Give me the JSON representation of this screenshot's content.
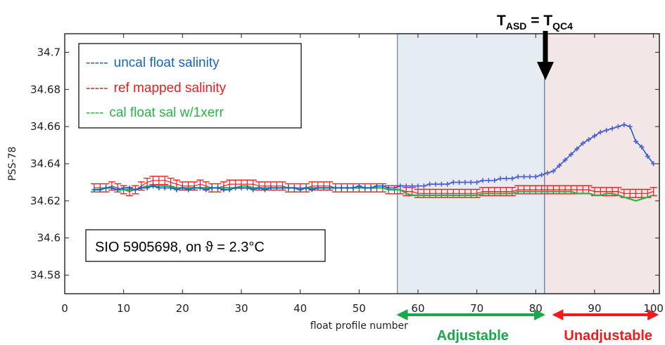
{
  "chart_data": {
    "type": "line",
    "xlabel": "float profile number",
    "ylabel": "PSS-78",
    "xlim": [
      0,
      101
    ],
    "ylim": [
      34.57,
      34.71
    ],
    "xticks": [
      0,
      10,
      20,
      30,
      40,
      50,
      60,
      70,
      80,
      90,
      100
    ],
    "yticks": [
      34.58,
      34.6,
      34.62,
      34.64,
      34.66,
      34.68,
      34.7
    ],
    "ytick_labels": [
      "34.58",
      "34.6",
      "34.62",
      "34.64",
      "34.66",
      "34.68",
      "34.7"
    ],
    "grid": false,
    "legend": {
      "position": "top-left"
    },
    "annotation_box": "SIO 5905698, on ϑ = 2.3°C",
    "regions": [
      {
        "name": "Adjustable",
        "x_start": 56.5,
        "x_end": 81.5,
        "color": "#e6edf2",
        "label_color": "#17a84a"
      },
      {
        "name": "Unadjustable",
        "x_start": 81.5,
        "x_end": 101,
        "color": "#f2e6e6",
        "label_color": "#ee1c1c"
      }
    ],
    "vline": {
      "x": 81.5,
      "label_main": "T",
      "label_sub1": "ASD",
      "label_eq": " = T",
      "label_sub2": "QC4",
      "arrow_color": "#000000"
    },
    "series": [
      {
        "name": "uncal float salinity",
        "line_label": "-----",
        "color": "#1565c0",
        "marker": "plus",
        "x": [
          5,
          6,
          7,
          8,
          9,
          10,
          11,
          12,
          13,
          14,
          15,
          16,
          17,
          18,
          19,
          20,
          21,
          22,
          23,
          24,
          25,
          26,
          27,
          28,
          29,
          30,
          31,
          32,
          33,
          34,
          35,
          36,
          37,
          38,
          39,
          40,
          41,
          42,
          43,
          44,
          45,
          46,
          47,
          48,
          49,
          50,
          51,
          52,
          53,
          54,
          55,
          56,
          57,
          58,
          59,
          60,
          61,
          62,
          63,
          64,
          65,
          66,
          67,
          68,
          69,
          70,
          71,
          72,
          73,
          74,
          75,
          76,
          77,
          78,
          79,
          80,
          81,
          82,
          83,
          84,
          85,
          86,
          87,
          88,
          89,
          90,
          91,
          92,
          93,
          94,
          95,
          96,
          97,
          98,
          99,
          100
        ],
        "y": [
          34.626,
          34.626,
          34.627,
          34.627,
          34.626,
          34.627,
          34.627,
          34.626,
          34.627,
          34.627,
          34.628,
          34.627,
          34.627,
          34.627,
          34.626,
          34.627,
          34.626,
          34.627,
          34.627,
          34.626,
          34.627,
          34.627,
          34.626,
          34.626,
          34.627,
          34.627,
          34.627,
          34.626,
          34.627,
          34.626,
          34.627,
          34.627,
          34.627,
          34.627,
          34.627,
          34.626,
          34.627,
          34.626,
          34.627,
          34.627,
          34.627,
          34.627,
          34.627,
          34.627,
          34.627,
          34.628,
          34.627,
          34.627,
          34.628,
          34.628,
          34.627,
          34.627,
          34.628,
          34.628,
          34.628,
          34.628,
          34.628,
          34.629,
          34.629,
          34.629,
          34.629,
          34.63,
          34.63,
          34.63,
          34.63,
          34.63,
          34.631,
          34.631,
          34.631,
          34.632,
          34.632,
          34.632,
          34.633,
          34.633,
          34.633,
          34.633,
          34.634,
          34.635,
          34.636,
          34.639,
          34.642,
          34.645,
          34.648,
          34.651,
          34.653,
          34.655,
          34.657,
          34.658,
          34.659,
          34.66,
          34.661,
          34.66,
          34.652,
          34.649,
          34.644,
          34.64
        ]
      },
      {
        "name": "ref mapped salinity",
        "line_label": "-----",
        "color": "#ee1c1c",
        "marker": "errorbar",
        "x": [
          5,
          6,
          7,
          8,
          9,
          10,
          11,
          12,
          13,
          14,
          15,
          16,
          17,
          18,
          19,
          20,
          21,
          22,
          23,
          24,
          25,
          26,
          27,
          28,
          29,
          30,
          31,
          32,
          33,
          34,
          35,
          36,
          37,
          38,
          39,
          40,
          41,
          42,
          43,
          44,
          45,
          46,
          47,
          48,
          49,
          50,
          51,
          52,
          53,
          54,
          55,
          56,
          57,
          58,
          59,
          60,
          61,
          62,
          63,
          64,
          65,
          66,
          67,
          68,
          69,
          70,
          71,
          72,
          73,
          74,
          75,
          76,
          77,
          78,
          79,
          80,
          81,
          82,
          83,
          84,
          85,
          86,
          87,
          88,
          89,
          90,
          91,
          92,
          93,
          94,
          95,
          96,
          97,
          98,
          99,
          100
        ],
        "y": [
          34.627,
          34.627,
          34.627,
          34.628,
          34.627,
          34.626,
          34.625,
          34.626,
          34.628,
          34.63,
          34.631,
          34.631,
          34.631,
          34.63,
          34.629,
          34.628,
          34.628,
          34.628,
          34.629,
          34.628,
          34.627,
          34.627,
          34.628,
          34.629,
          34.629,
          34.629,
          34.629,
          34.629,
          34.628,
          34.628,
          34.628,
          34.628,
          34.628,
          34.627,
          34.627,
          34.627,
          34.627,
          34.628,
          34.628,
          34.628,
          34.628,
          34.627,
          34.627,
          34.627,
          34.627,
          34.627,
          34.627,
          34.627,
          34.627,
          34.627,
          34.626,
          34.626,
          34.626,
          34.625,
          34.625,
          34.624,
          34.624,
          34.624,
          34.624,
          34.624,
          34.624,
          34.624,
          34.624,
          34.624,
          34.624,
          34.624,
          34.625,
          34.625,
          34.625,
          34.625,
          34.625,
          34.625,
          34.626,
          34.626,
          34.626,
          34.626,
          34.626,
          34.626,
          34.626,
          34.626,
          34.626,
          34.626,
          34.626,
          34.626,
          34.626,
          34.625,
          34.625,
          34.625,
          34.625,
          34.625,
          34.624,
          34.624,
          34.624,
          34.624,
          34.624,
          34.625
        ],
        "err": 0.0022
      },
      {
        "name": "cal float sal w/1xerr",
        "line_label": "----",
        "color": "#2bb34a",
        "marker": "line",
        "x": [
          5,
          6,
          7,
          8,
          9,
          10,
          11,
          12,
          13,
          14,
          15,
          16,
          17,
          18,
          19,
          20,
          21,
          22,
          23,
          24,
          25,
          26,
          27,
          28,
          29,
          30,
          31,
          32,
          33,
          34,
          35,
          36,
          37,
          38,
          39,
          40,
          41,
          42,
          43,
          44,
          45,
          46,
          47,
          48,
          49,
          50,
          51,
          52,
          53,
          54,
          55,
          56,
          57,
          58,
          59,
          60,
          61,
          62,
          63,
          64,
          65,
          66,
          67,
          68,
          69,
          70,
          71,
          72,
          73,
          74,
          75,
          76,
          77,
          78,
          79,
          80,
          81,
          82,
          83,
          84,
          85,
          86,
          87,
          88,
          89,
          90,
          91,
          92,
          93,
          94,
          95,
          96,
          97,
          98,
          99,
          100
        ],
        "y": [
          34.626,
          34.626,
          34.627,
          34.627,
          34.626,
          34.626,
          34.626,
          34.626,
          34.627,
          34.628,
          34.628,
          34.628,
          34.628,
          34.628,
          34.627,
          34.627,
          34.627,
          34.627,
          34.627,
          34.627,
          34.627,
          34.627,
          34.627,
          34.627,
          34.627,
          34.628,
          34.628,
          34.627,
          34.627,
          34.627,
          34.627,
          34.627,
          34.627,
          34.627,
          34.627,
          34.626,
          34.627,
          34.627,
          34.627,
          34.627,
          34.627,
          34.627,
          34.627,
          34.627,
          34.627,
          34.627,
          34.627,
          34.627,
          34.627,
          34.627,
          34.626,
          34.626,
          34.626,
          34.624,
          34.623,
          34.623,
          34.623,
          34.623,
          34.623,
          34.623,
          34.623,
          34.623,
          34.623,
          34.623,
          34.623,
          34.623,
          34.624,
          34.624,
          34.624,
          34.624,
          34.624,
          34.624,
          34.625,
          34.625,
          34.625,
          34.625,
          34.625,
          34.625,
          34.625,
          34.625,
          34.625,
          34.625,
          34.624,
          34.624,
          34.624,
          34.623,
          34.623,
          34.624,
          34.624,
          34.623,
          34.622,
          34.621,
          34.62,
          34.621,
          34.622,
          34.623
        ]
      }
    ]
  }
}
